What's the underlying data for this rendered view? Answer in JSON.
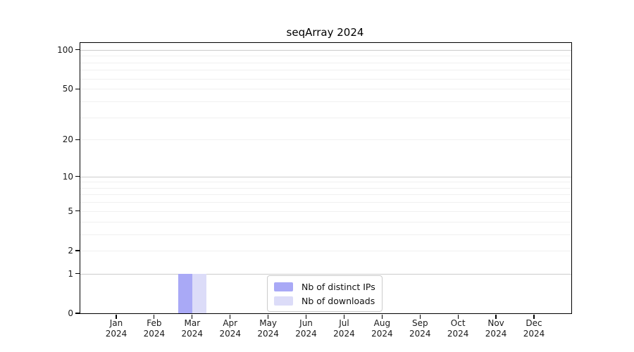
{
  "title": "seqArray 2024",
  "chart_data": {
    "type": "bar",
    "title": "seqArray 2024",
    "scale": "log1p",
    "grid": "horizontal",
    "categories": [
      "Jan",
      "Feb",
      "Mar",
      "Apr",
      "May",
      "Jun",
      "Jul",
      "Aug",
      "Sep",
      "Oct",
      "Nov",
      "Dec"
    ],
    "x_sublabel": "2024",
    "series": [
      {
        "name": "Nb of distinct IPs",
        "color": "#a9a9f6",
        "values": [
          0,
          0,
          1,
          0,
          0,
          0,
          0,
          0,
          0,
          0,
          0,
          0
        ]
      },
      {
        "name": "Nb of downloads",
        "color": "#dcdcf8",
        "values": [
          0,
          0,
          1,
          0,
          0,
          0,
          0,
          0,
          0,
          0,
          0,
          0
        ]
      }
    ],
    "yticks": [
      100,
      50,
      20,
      10,
      5,
      2,
      1,
      0
    ],
    "major_gridlines": [
      1,
      10,
      100
    ],
    "minor_gridlines": [
      2,
      3,
      4,
      5,
      6,
      7,
      8,
      9,
      20,
      30,
      40,
      50,
      60,
      70,
      80,
      90
    ],
    "ylim": [
      0,
      113
    ],
    "legend_position": "lower-center"
  },
  "colors": {
    "bar_distinct_ips": "#a9a9f6",
    "bar_downloads": "#dcdcf8",
    "grid_major": "#cccccc",
    "grid_minor": "#f0f0f0",
    "spine": "#000000",
    "legend_border": "#cccccc"
  }
}
